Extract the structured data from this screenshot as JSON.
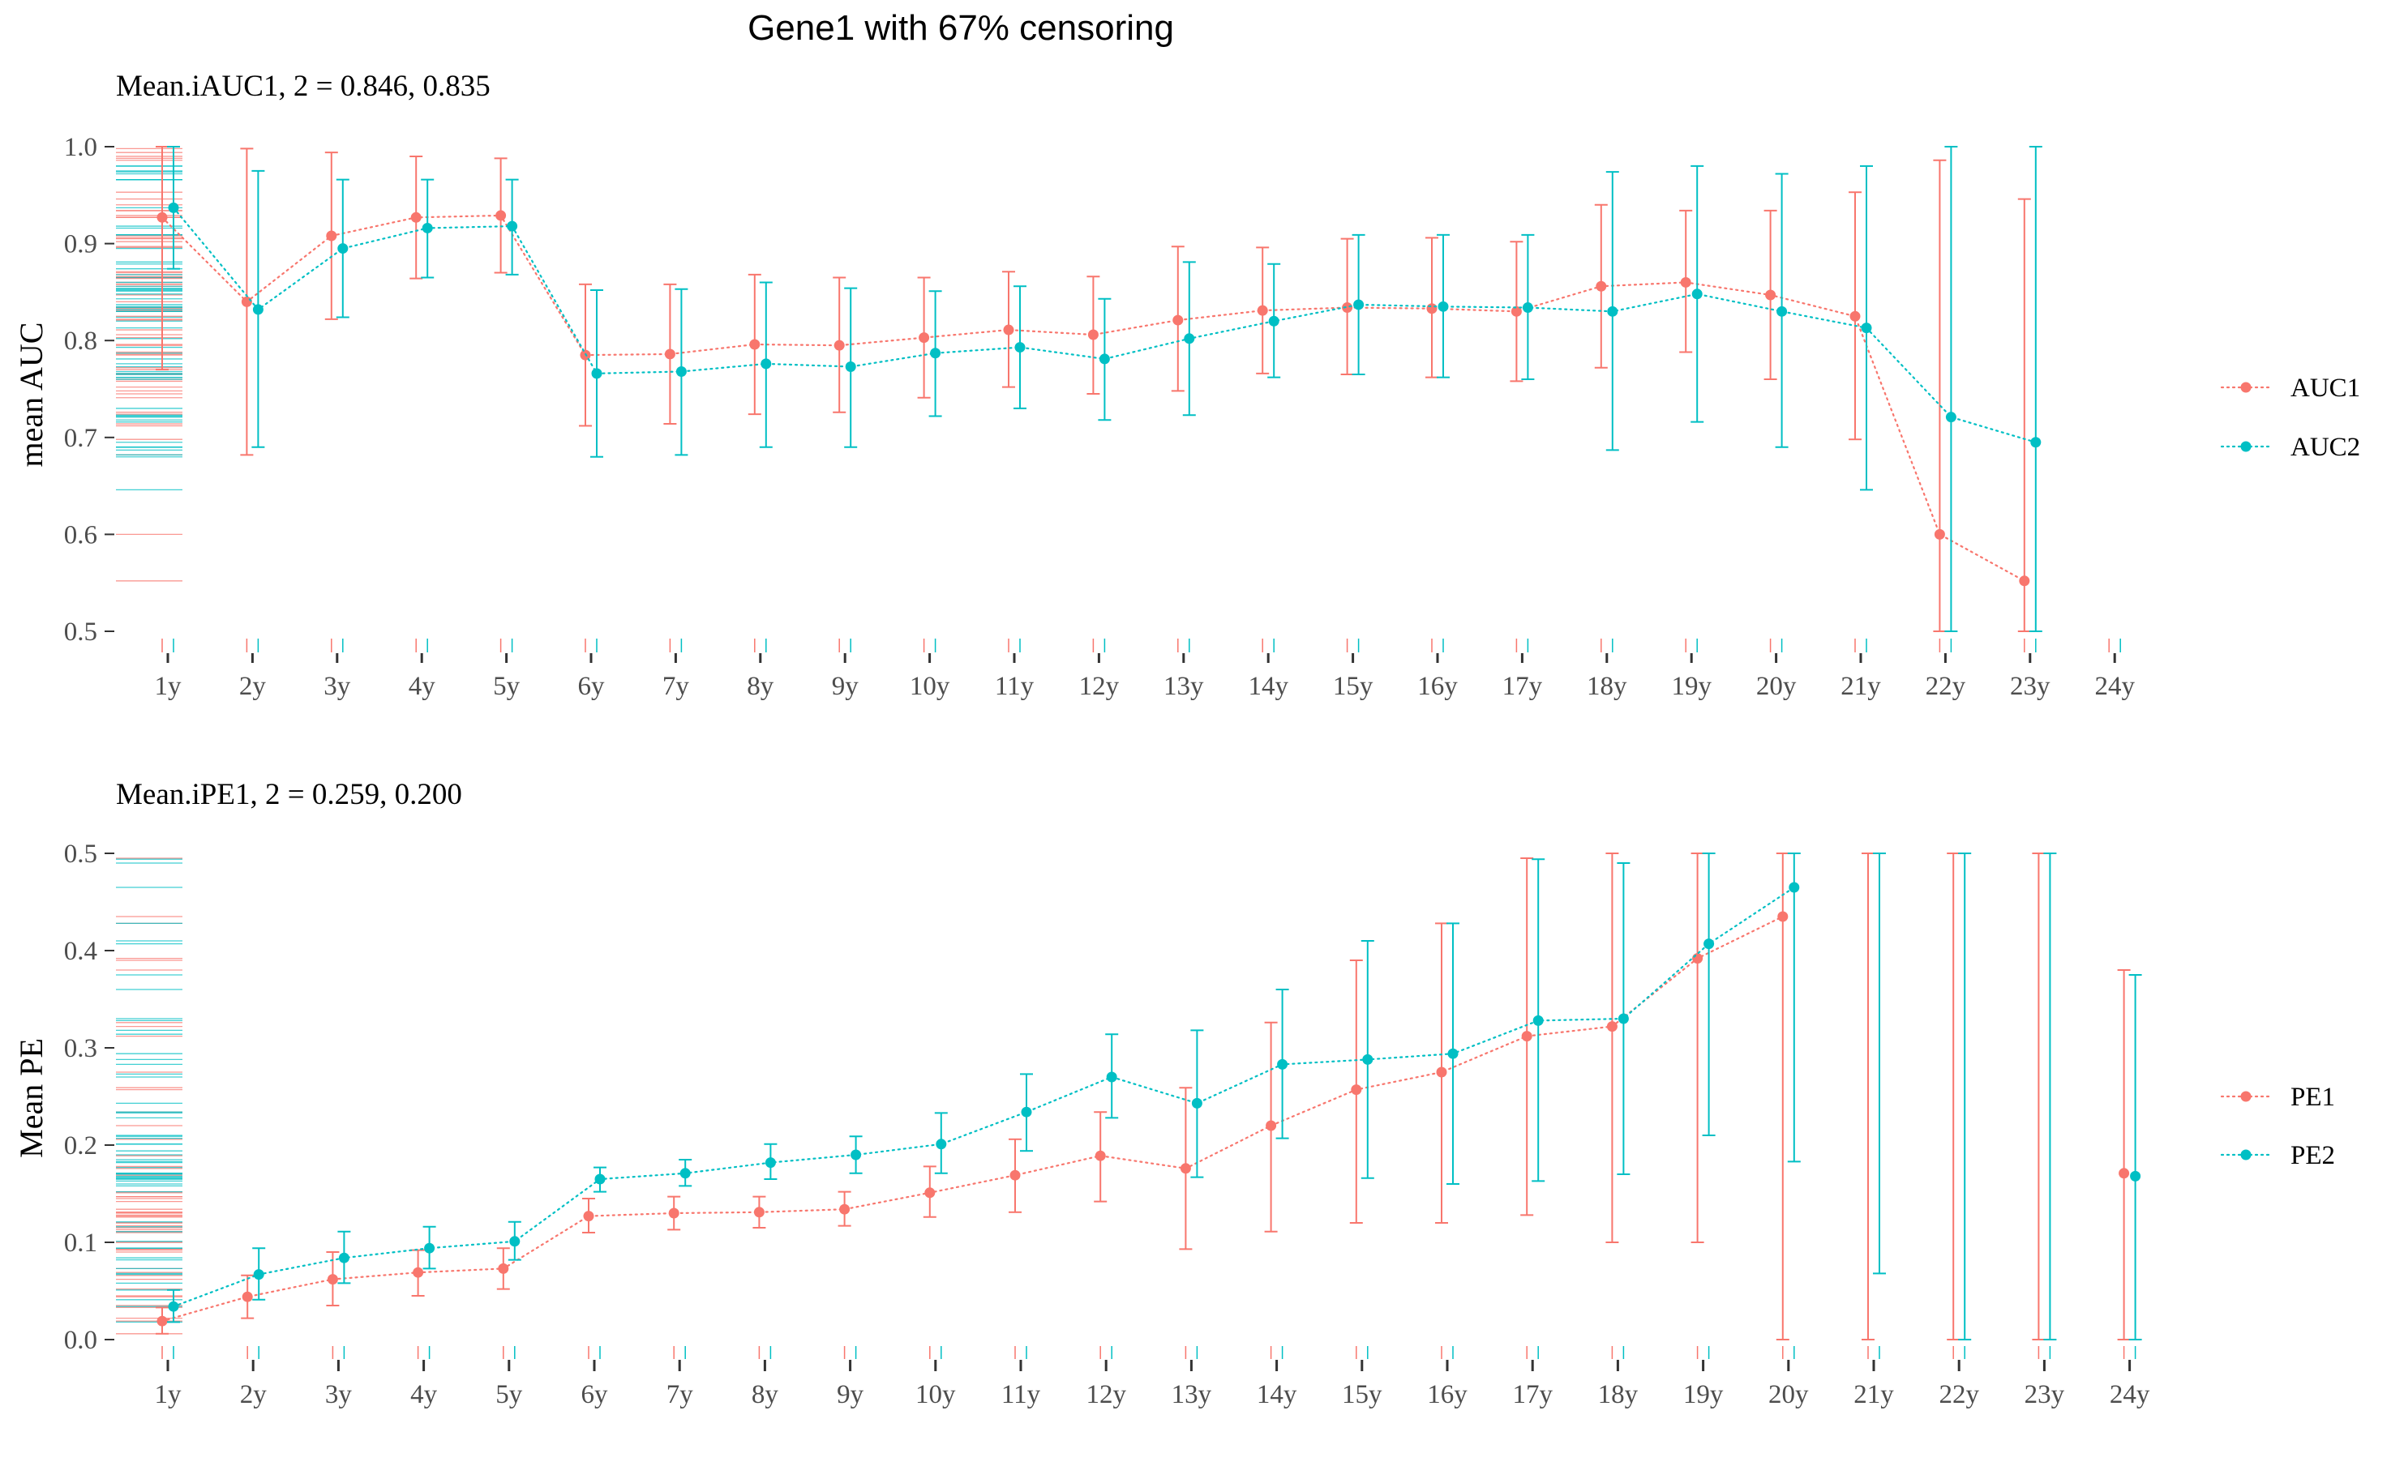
{
  "figure": {
    "title": "Gene1 with 67% censoring"
  },
  "colors": {
    "series1": "#F8766D",
    "series2": "#00BFC4",
    "tick": "#333333"
  },
  "chart_data": [
    {
      "type": "line",
      "subtitle": "Mean.iAUC1, 2 =  0.846, 0.835",
      "ylabel": "mean AUC",
      "xlabel": "",
      "ylim": [
        0.5,
        1.0
      ],
      "yticks": [
        "0.5",
        "0.6",
        "0.7",
        "0.8",
        "0.9",
        "1.0"
      ],
      "categories": [
        "1y",
        "2y",
        "3y",
        "4y",
        "5y",
        "6y",
        "7y",
        "8y",
        "9y",
        "10y",
        "11y",
        "12y",
        "13y",
        "14y",
        "15y",
        "16y",
        "17y",
        "18y",
        "19y",
        "20y",
        "21y",
        "22y",
        "23y",
        "24y"
      ],
      "grid": false,
      "legend_position": "right",
      "error_bars": true,
      "rug": true,
      "series": [
        {
          "name": "AUC1",
          "values": [
            0.927,
            0.84,
            0.908,
            0.927,
            0.929,
            0.785,
            0.786,
            0.796,
            0.795,
            0.803,
            0.811,
            0.806,
            0.821,
            0.831,
            0.834,
            0.833,
            0.83,
            0.856,
            0.86,
            0.847,
            0.825,
            0.6,
            0.552,
            null
          ],
          "lower": [
            0.77,
            0.682,
            0.822,
            0.864,
            0.87,
            0.712,
            0.714,
            0.724,
            0.726,
            0.741,
            0.752,
            0.745,
            0.748,
            0.766,
            0.765,
            0.762,
            0.758,
            0.772,
            0.788,
            0.76,
            0.698,
            0.5,
            0.5,
            null
          ],
          "upper": [
            1.0,
            0.998,
            0.994,
            0.99,
            0.988,
            0.858,
            0.858,
            0.868,
            0.865,
            0.865,
            0.871,
            0.866,
            0.897,
            0.896,
            0.905,
            0.906,
            0.902,
            0.94,
            0.934,
            0.934,
            0.953,
            0.986,
            0.946,
            null
          ],
          "rug": [
            0.6,
            0.552
          ]
        },
        {
          "name": "AUC2",
          "values": [
            0.937,
            0.832,
            0.895,
            0.916,
            0.918,
            0.766,
            0.768,
            0.776,
            0.773,
            0.787,
            0.793,
            0.781,
            0.802,
            0.82,
            0.837,
            0.835,
            0.834,
            0.83,
            0.848,
            0.83,
            0.813,
            0.721,
            0.695,
            null
          ],
          "lower": [
            0.874,
            0.69,
            0.824,
            0.865,
            0.868,
            0.68,
            0.682,
            0.69,
            0.69,
            0.722,
            0.73,
            0.718,
            0.723,
            0.762,
            0.765,
            0.762,
            0.76,
            0.687,
            0.716,
            0.69,
            0.646,
            0.5,
            0.5,
            null
          ],
          "upper": [
            1.0,
            0.975,
            0.966,
            0.966,
            0.966,
            0.852,
            0.853,
            0.86,
            0.854,
            0.851,
            0.856,
            0.843,
            0.881,
            0.879,
            0.909,
            0.909,
            0.909,
            0.974,
            0.98,
            0.972,
            0.98,
            1.0,
            1.0,
            null
          ],
          "rug": [
            0.721,
            0.695
          ]
        }
      ]
    },
    {
      "type": "line",
      "subtitle": "Mean.iPE1, 2 =  0.259, 0.200",
      "ylabel": "Mean PE",
      "xlabel": "",
      "ylim": [
        0.0,
        0.5
      ],
      "yticks": [
        "0.0",
        "0.1",
        "0.2",
        "0.3",
        "0.4",
        "0.5"
      ],
      "categories": [
        "1y",
        "2y",
        "3y",
        "4y",
        "5y",
        "6y",
        "7y",
        "8y",
        "9y",
        "10y",
        "11y",
        "12y",
        "13y",
        "14y",
        "15y",
        "16y",
        "17y",
        "18y",
        "19y",
        "20y",
        "21y",
        "22y",
        "23y",
        "24y"
      ],
      "grid": false,
      "legend_position": "right",
      "error_bars": true,
      "rug": true,
      "series": [
        {
          "name": "PE1",
          "values": [
            0.019,
            0.044,
            0.062,
            0.069,
            0.073,
            0.127,
            0.13,
            0.131,
            0.134,
            0.151,
            0.169,
            0.189,
            0.176,
            0.22,
            0.257,
            0.275,
            0.312,
            0.322,
            0.392,
            0.435,
            null,
            null,
            null,
            0.171
          ],
          "lower": [
            0.006,
            0.022,
            0.035,
            0.045,
            0.052,
            0.11,
            0.113,
            0.115,
            0.117,
            0.126,
            0.131,
            0.142,
            0.093,
            0.111,
            0.12,
            0.12,
            0.128,
            0.1,
            0.1,
            0.0,
            0.0,
            0.0,
            0.0,
            0.0
          ],
          "upper": [
            0.033,
            0.066,
            0.09,
            0.092,
            0.094,
            0.145,
            0.147,
            0.147,
            0.152,
            0.178,
            0.206,
            0.234,
            0.259,
            0.326,
            0.39,
            0.428,
            0.495,
            0.5,
            0.5,
            0.5,
            0.5,
            0.5,
            0.5,
            0.38
          ]
        },
        {
          "name": "PE2",
          "values": [
            0.034,
            0.067,
            0.084,
            0.094,
            0.101,
            0.165,
            0.171,
            0.182,
            0.19,
            0.201,
            0.234,
            0.27,
            0.243,
            0.283,
            0.288,
            0.294,
            0.328,
            0.33,
            0.407,
            0.465,
            null,
            null,
            null,
            0.168
          ],
          "lower": [
            0.018,
            0.041,
            0.058,
            0.073,
            0.082,
            0.152,
            0.158,
            0.165,
            0.171,
            0.171,
            0.194,
            0.228,
            0.167,
            0.207,
            0.166,
            0.16,
            0.163,
            0.17,
            0.21,
            0.183,
            0.068,
            0.0,
            0.0,
            0.0
          ],
          "upper": [
            0.051,
            0.094,
            0.111,
            0.116,
            0.121,
            0.177,
            0.185,
            0.201,
            0.209,
            0.233,
            0.273,
            0.314,
            0.318,
            0.36,
            0.41,
            0.428,
            0.494,
            0.49,
            0.5,
            0.5,
            0.5,
            0.5,
            0.5,
            0.375
          ]
        }
      ]
    }
  ]
}
